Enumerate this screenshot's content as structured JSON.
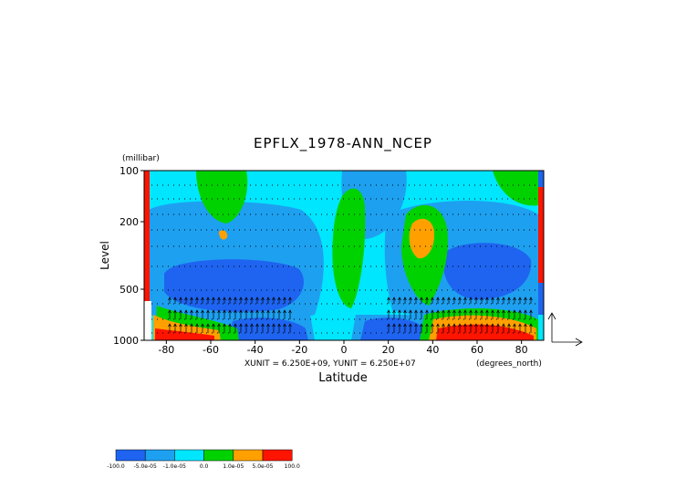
{
  "chart_data": {
    "type": "contour",
    "title": "EPFLX_1978-ANN_NCEP",
    "y_unit": "(millibar)",
    "ylabel": "Level",
    "xlabel": "Latitude",
    "x_unit": "(degrees_north)",
    "annotation": "XUNIT = 6.250E+09, YUNIT = 6.250E+07",
    "xlim": [
      -90,
      90
    ],
    "xticks": [
      -80,
      -60,
      -40,
      -20,
      0,
      20,
      40,
      60,
      80
    ],
    "ylim": [
      1000,
      100
    ],
    "yticks": [
      100,
      200,
      500,
      1000
    ],
    "log_y": true,
    "levels": [
      {
        "value": -100,
        "label": "-100.0"
      },
      {
        "value": -5e-05,
        "label": "-5.0e-05"
      },
      {
        "value": -1e-05,
        "label": "-1.0e-05"
      },
      {
        "value": 0,
        "label": "0.0"
      },
      {
        "value": 1e-05,
        "label": "1.0e-05"
      },
      {
        "value": 5e-05,
        "label": "5.0e-05"
      },
      {
        "value": 100,
        "label": "100.0"
      }
    ],
    "colors": [
      "#1e64f0",
      "#1ea0f0",
      "#00e6ff",
      "#00d200",
      "#ffa000",
      "#ff1400"
    ]
  }
}
